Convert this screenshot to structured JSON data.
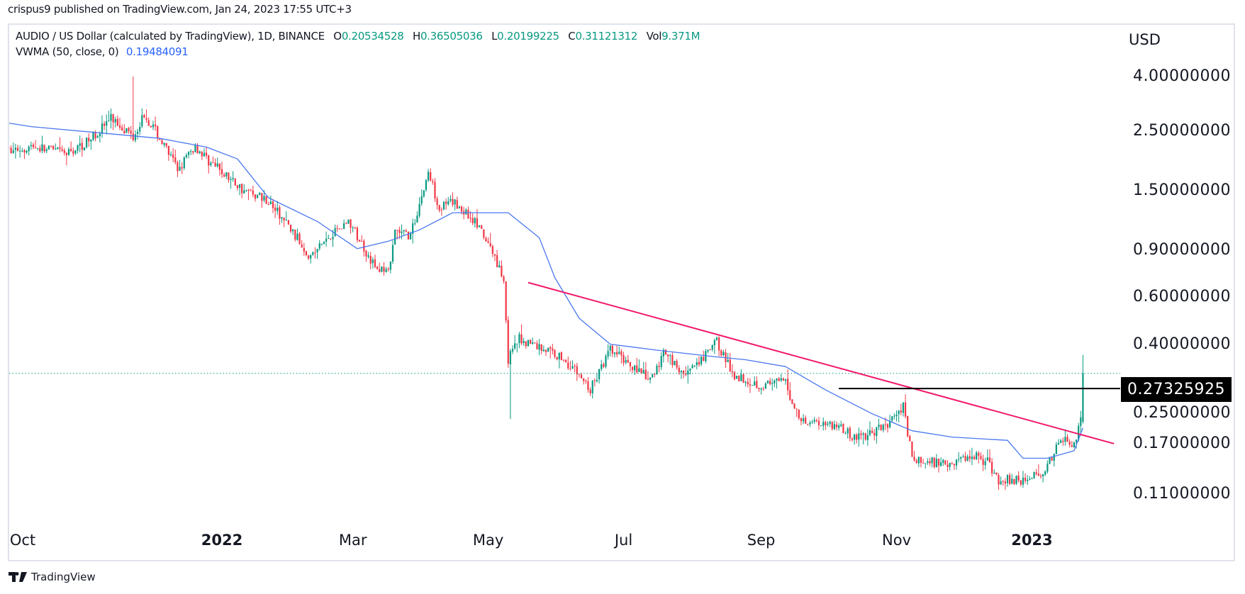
{
  "header": {
    "published": "crispus9 published on TradingView.com, Jan 24, 2023 17:55 UTC+3"
  },
  "legend": {
    "symbol": "AUDIO / US Dollar (calculated by TradingView), 1D, BINANCE",
    "o_label": "O",
    "o": "0.20534528",
    "h_label": "H",
    "h": "0.36505036",
    "l_label": "L",
    "l": "0.20199225",
    "c_label": "C",
    "c": "0.31121312",
    "vol_label": "Vol",
    "vol": "9.371M",
    "indicator": "VWMA (50, close, 0)",
    "indicator_value": "0.19484091"
  },
  "footer": {
    "brand": "TradingView"
  },
  "colors": {
    "up": "#089981",
    "down": "#f23645",
    "vwma": "#4a78f0",
    "trendline": "#f0196a",
    "level": "#000000"
  },
  "chart_data": {
    "type": "candlestick",
    "scale": "log",
    "currency": "USD",
    "ylim": [
      0.105,
      4.3
    ],
    "y_ticks": [
      "4.00000000",
      "2.50000000",
      "1.50000000",
      "0.90000000",
      "0.60000000",
      "0.40000000",
      "0.25000000",
      "0.17000000",
      "0.11000000"
    ],
    "x_ticks": [
      {
        "label": "Oct",
        "date": "2021-10-01",
        "bold": false
      },
      {
        "label": "2022",
        "date": "2022-01-01",
        "bold": true
      },
      {
        "label": "Mar",
        "date": "2022-03-01",
        "bold": false
      },
      {
        "label": "May",
        "date": "2022-05-01",
        "bold": false
      },
      {
        "label": "Jul",
        "date": "2022-07-01",
        "bold": false
      },
      {
        "label": "Sep",
        "date": "2022-09-01",
        "bold": false
      },
      {
        "label": "Nov",
        "date": "2022-11-01",
        "bold": false
      },
      {
        "label": "2023",
        "date": "2023-01-01",
        "bold": true
      }
    ],
    "approx_close_path": [
      [
        "2021-09-26",
        2.1
      ],
      [
        "2021-10-08",
        2.2
      ],
      [
        "2021-10-23",
        2.05
      ],
      [
        "2021-11-02",
        2.3
      ],
      [
        "2021-11-12",
        2.8
      ],
      [
        "2021-11-17",
        2.6
      ],
      [
        "2021-11-22",
        2.4
      ],
      [
        "2021-11-27",
        2.9
      ],
      [
        "2021-12-02",
        2.5
      ],
      [
        "2021-12-12",
        1.8
      ],
      [
        "2021-12-20",
        2.2
      ],
      [
        "2021-12-27",
        1.9
      ],
      [
        "2022-01-11",
        1.5
      ],
      [
        "2022-01-21",
        1.4
      ],
      [
        "2022-01-31",
        1.1
      ],
      [
        "2022-02-10",
        0.85
      ],
      [
        "2022-02-20",
        1.05
      ],
      [
        "2022-02-27",
        1.15
      ],
      [
        "2022-03-05",
        0.95
      ],
      [
        "2022-03-12",
        0.75
      ],
      [
        "2022-03-18",
        0.78
      ],
      [
        "2022-03-20",
        1.05
      ],
      [
        "2022-03-27",
        1.02
      ],
      [
        "2022-04-04",
        1.75
      ],
      [
        "2022-04-09",
        1.3
      ],
      [
        "2022-04-16",
        1.35
      ],
      [
        "2022-04-25",
        1.15
      ],
      [
        "2022-05-04",
        0.85
      ],
      [
        "2022-05-08",
        0.7
      ],
      [
        "2022-05-10",
        0.35
      ],
      [
        "2022-05-15",
        0.42
      ],
      [
        "2022-05-31",
        0.37
      ],
      [
        "2022-06-08",
        0.33
      ],
      [
        "2022-06-16",
        0.27
      ],
      [
        "2022-06-25",
        0.38
      ],
      [
        "2022-07-06",
        0.33
      ],
      [
        "2022-07-13",
        0.29
      ],
      [
        "2022-07-20",
        0.38
      ],
      [
        "2022-07-27",
        0.31
      ],
      [
        "2022-08-03",
        0.33
      ],
      [
        "2022-08-12",
        0.41
      ],
      [
        "2022-08-19",
        0.31
      ],
      [
        "2022-09-01",
        0.28
      ],
      [
        "2022-09-12",
        0.29
      ],
      [
        "2022-09-15",
        0.24
      ],
      [
        "2022-09-19",
        0.21
      ],
      [
        "2022-10-05",
        0.2
      ],
      [
        "2022-10-12",
        0.18
      ],
      [
        "2022-10-21",
        0.185
      ],
      [
        "2022-10-31",
        0.21
      ],
      [
        "2022-11-04",
        0.24
      ],
      [
        "2022-11-08",
        0.15
      ],
      [
        "2022-11-12",
        0.145
      ],
      [
        "2022-11-26",
        0.145
      ],
      [
        "2022-12-06",
        0.155
      ],
      [
        "2022-12-12",
        0.145
      ],
      [
        "2022-12-17",
        0.125
      ],
      [
        "2022-12-31",
        0.125
      ],
      [
        "2023-01-08",
        0.14
      ],
      [
        "2023-01-15",
        0.18
      ],
      [
        "2023-01-20",
        0.17
      ],
      [
        "2023-01-23",
        0.205
      ]
    ],
    "notable_wicks": [
      {
        "date": "2021-11-22",
        "high": 4.0
      },
      {
        "date": "2022-05-11",
        "low": 0.21
      },
      {
        "date": "2022-11-05",
        "high": 0.26
      }
    ],
    "last_candle": {
      "date": "2023-01-24",
      "open": 0.20534528,
      "high": 0.36505036,
      "low": 0.20199225,
      "close": 0.31121312
    },
    "vwma_path": [
      [
        "2021-09-27",
        2.68
      ],
      [
        "2021-10-07",
        2.6
      ],
      [
        "2021-12-04",
        2.35
      ],
      [
        "2021-12-25",
        2.18
      ],
      [
        "2022-01-08",
        1.97
      ],
      [
        "2022-01-22",
        1.41
      ],
      [
        "2022-02-13",
        1.15
      ],
      [
        "2022-03-03",
        0.91
      ],
      [
        "2022-03-17",
        0.97
      ],
      [
        "2022-03-31",
        1.07
      ],
      [
        "2022-04-15",
        1.24
      ],
      [
        "2022-05-10",
        1.24
      ],
      [
        "2022-05-24",
        1.0
      ],
      [
        "2022-05-31",
        0.71
      ],
      [
        "2022-06-11",
        0.5
      ],
      [
        "2022-06-25",
        0.4
      ],
      [
        "2022-07-16",
        0.38
      ],
      [
        "2022-08-10",
        0.36
      ],
      [
        "2022-08-25",
        0.35
      ],
      [
        "2022-09-12",
        0.33
      ],
      [
        "2022-09-30",
        0.27
      ],
      [
        "2022-10-21",
        0.22
      ],
      [
        "2022-11-08",
        0.19
      ],
      [
        "2022-11-26",
        0.18
      ],
      [
        "2022-12-21",
        0.175
      ],
      [
        "2022-12-28",
        0.15
      ],
      [
        "2023-01-08",
        0.15
      ],
      [
        "2023-01-20",
        0.16
      ],
      [
        "2023-01-24",
        0.19484091
      ]
    ],
    "trendline": {
      "from": [
        "2022-05-19",
        0.68
      ],
      "to": [
        "2023-02-07",
        0.17
      ]
    },
    "horizontal_level": {
      "from": "2022-10-06",
      "price": 0.27325925,
      "label": "0.27325925"
    },
    "last_price": 0.31121312
  }
}
